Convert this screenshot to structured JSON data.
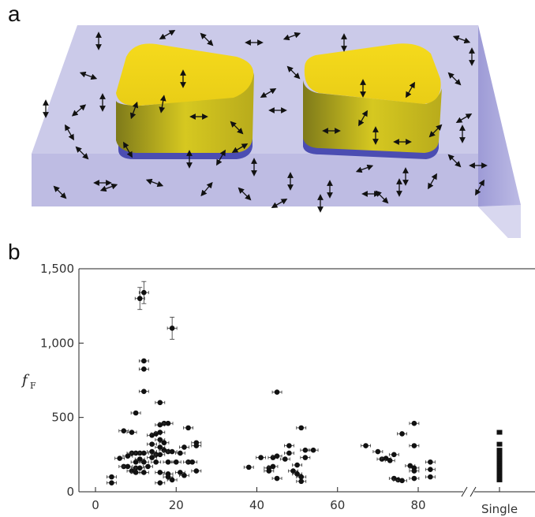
{
  "figure": {
    "panel_a_label": "a",
    "panel_b_label": "b"
  },
  "colors": {
    "slab_top": "#c9c8ea",
    "slab_front": "#bfbde3",
    "slab_side": "#9d9bd6",
    "gold_top": "#f1d61a",
    "gold_side": "#c4b51c",
    "substrate_layer": "#4d4fb4",
    "marker": "#111111"
  },
  "chart_data": {
    "type": "scatter",
    "title": "",
    "xlabel": "",
    "ylabel": "f",
    "ylabel_subscript": "F",
    "ylim": [
      0,
      1500
    ],
    "xlim": [
      0,
      90
    ],
    "y_ticks": [
      0,
      500,
      1000,
      1500
    ],
    "y_tick_labels": [
      "0",
      "500",
      "1,000",
      "1,500"
    ],
    "x_ticks": [
      0,
      20,
      40,
      60,
      80
    ],
    "x_tick_labels": [
      "0",
      "20",
      "40",
      "60",
      "80"
    ],
    "extra_category": "Single",
    "axis_break": true,
    "grid": false,
    "error_bars": true,
    "series": [
      {
        "points": [
          [
            4,
            100
          ],
          [
            4,
            60
          ],
          [
            6,
            225
          ],
          [
            7,
            170
          ],
          [
            7,
            410
          ],
          [
            8,
            170
          ],
          [
            8,
            240
          ],
          [
            9,
            400
          ],
          [
            9,
            260
          ],
          [
            9,
            140
          ],
          [
            10,
            530
          ],
          [
            10,
            260
          ],
          [
            10,
            200
          ],
          [
            10,
            160
          ],
          [
            10,
            130
          ],
          [
            11,
            1300
          ],
          [
            11,
            260
          ],
          [
            11,
            220
          ],
          [
            11,
            160
          ],
          [
            12,
            1340
          ],
          [
            12,
            880
          ],
          [
            12,
            825
          ],
          [
            12,
            675
          ],
          [
            12,
            260
          ],
          [
            12,
            200
          ],
          [
            12,
            130
          ],
          [
            13,
            170
          ],
          [
            14,
            380
          ],
          [
            14,
            320
          ],
          [
            14,
            270
          ],
          [
            14,
            230
          ],
          [
            15,
            390
          ],
          [
            15,
            250
          ],
          [
            15,
            200
          ],
          [
            16,
            600
          ],
          [
            16,
            450
          ],
          [
            16,
            400
          ],
          [
            16,
            350
          ],
          [
            16,
            300
          ],
          [
            16,
            250
          ],
          [
            16,
            130
          ],
          [
            16,
            60
          ],
          [
            17,
            460
          ],
          [
            17,
            330
          ],
          [
            17,
            280
          ],
          [
            18,
            460
          ],
          [
            18,
            270
          ],
          [
            18,
            200
          ],
          [
            18,
            120
          ],
          [
            18,
            100
          ],
          [
            19,
            1100
          ],
          [
            19,
            270
          ],
          [
            19,
            80
          ],
          [
            20,
            200
          ],
          [
            21,
            260
          ],
          [
            21,
            130
          ],
          [
            22,
            300
          ],
          [
            22,
            110
          ],
          [
            23,
            430
          ],
          [
            23,
            200
          ],
          [
            24,
            200
          ],
          [
            25,
            330
          ],
          [
            25,
            310
          ],
          [
            25,
            140
          ],
          [
            38,
            165
          ],
          [
            41,
            230
          ],
          [
            43,
            160
          ],
          [
            43,
            140
          ],
          [
            44,
            230
          ],
          [
            44,
            170
          ],
          [
            45,
            670
          ],
          [
            45,
            240
          ],
          [
            45,
            90
          ],
          [
            47,
            220
          ],
          [
            48,
            310
          ],
          [
            48,
            260
          ],
          [
            49,
            140
          ],
          [
            50,
            180
          ],
          [
            50,
            120
          ],
          [
            51,
            430
          ],
          [
            51,
            100
          ],
          [
            51,
            70
          ],
          [
            52,
            280
          ],
          [
            52,
            230
          ],
          [
            54,
            280
          ],
          [
            67,
            310
          ],
          [
            70,
            270
          ],
          [
            71,
            220
          ],
          [
            72,
            225
          ],
          [
            73,
            210
          ],
          [
            74,
            250
          ],
          [
            74,
            90
          ],
          [
            75,
            80
          ],
          [
            76,
            75
          ],
          [
            76,
            390
          ],
          [
            78,
            175
          ],
          [
            79,
            460
          ],
          [
            79,
            310
          ],
          [
            79,
            160
          ],
          [
            79,
            140
          ],
          [
            79,
            90
          ],
          [
            83,
            200
          ],
          [
            83,
            150
          ],
          [
            83,
            100
          ]
        ],
        "single": [
          400,
          320,
          280,
          260,
          240,
          220,
          210,
          200,
          190,
          180,
          170,
          160,
          150,
          140,
          130,
          120,
          100,
          80
        ]
      }
    ]
  }
}
